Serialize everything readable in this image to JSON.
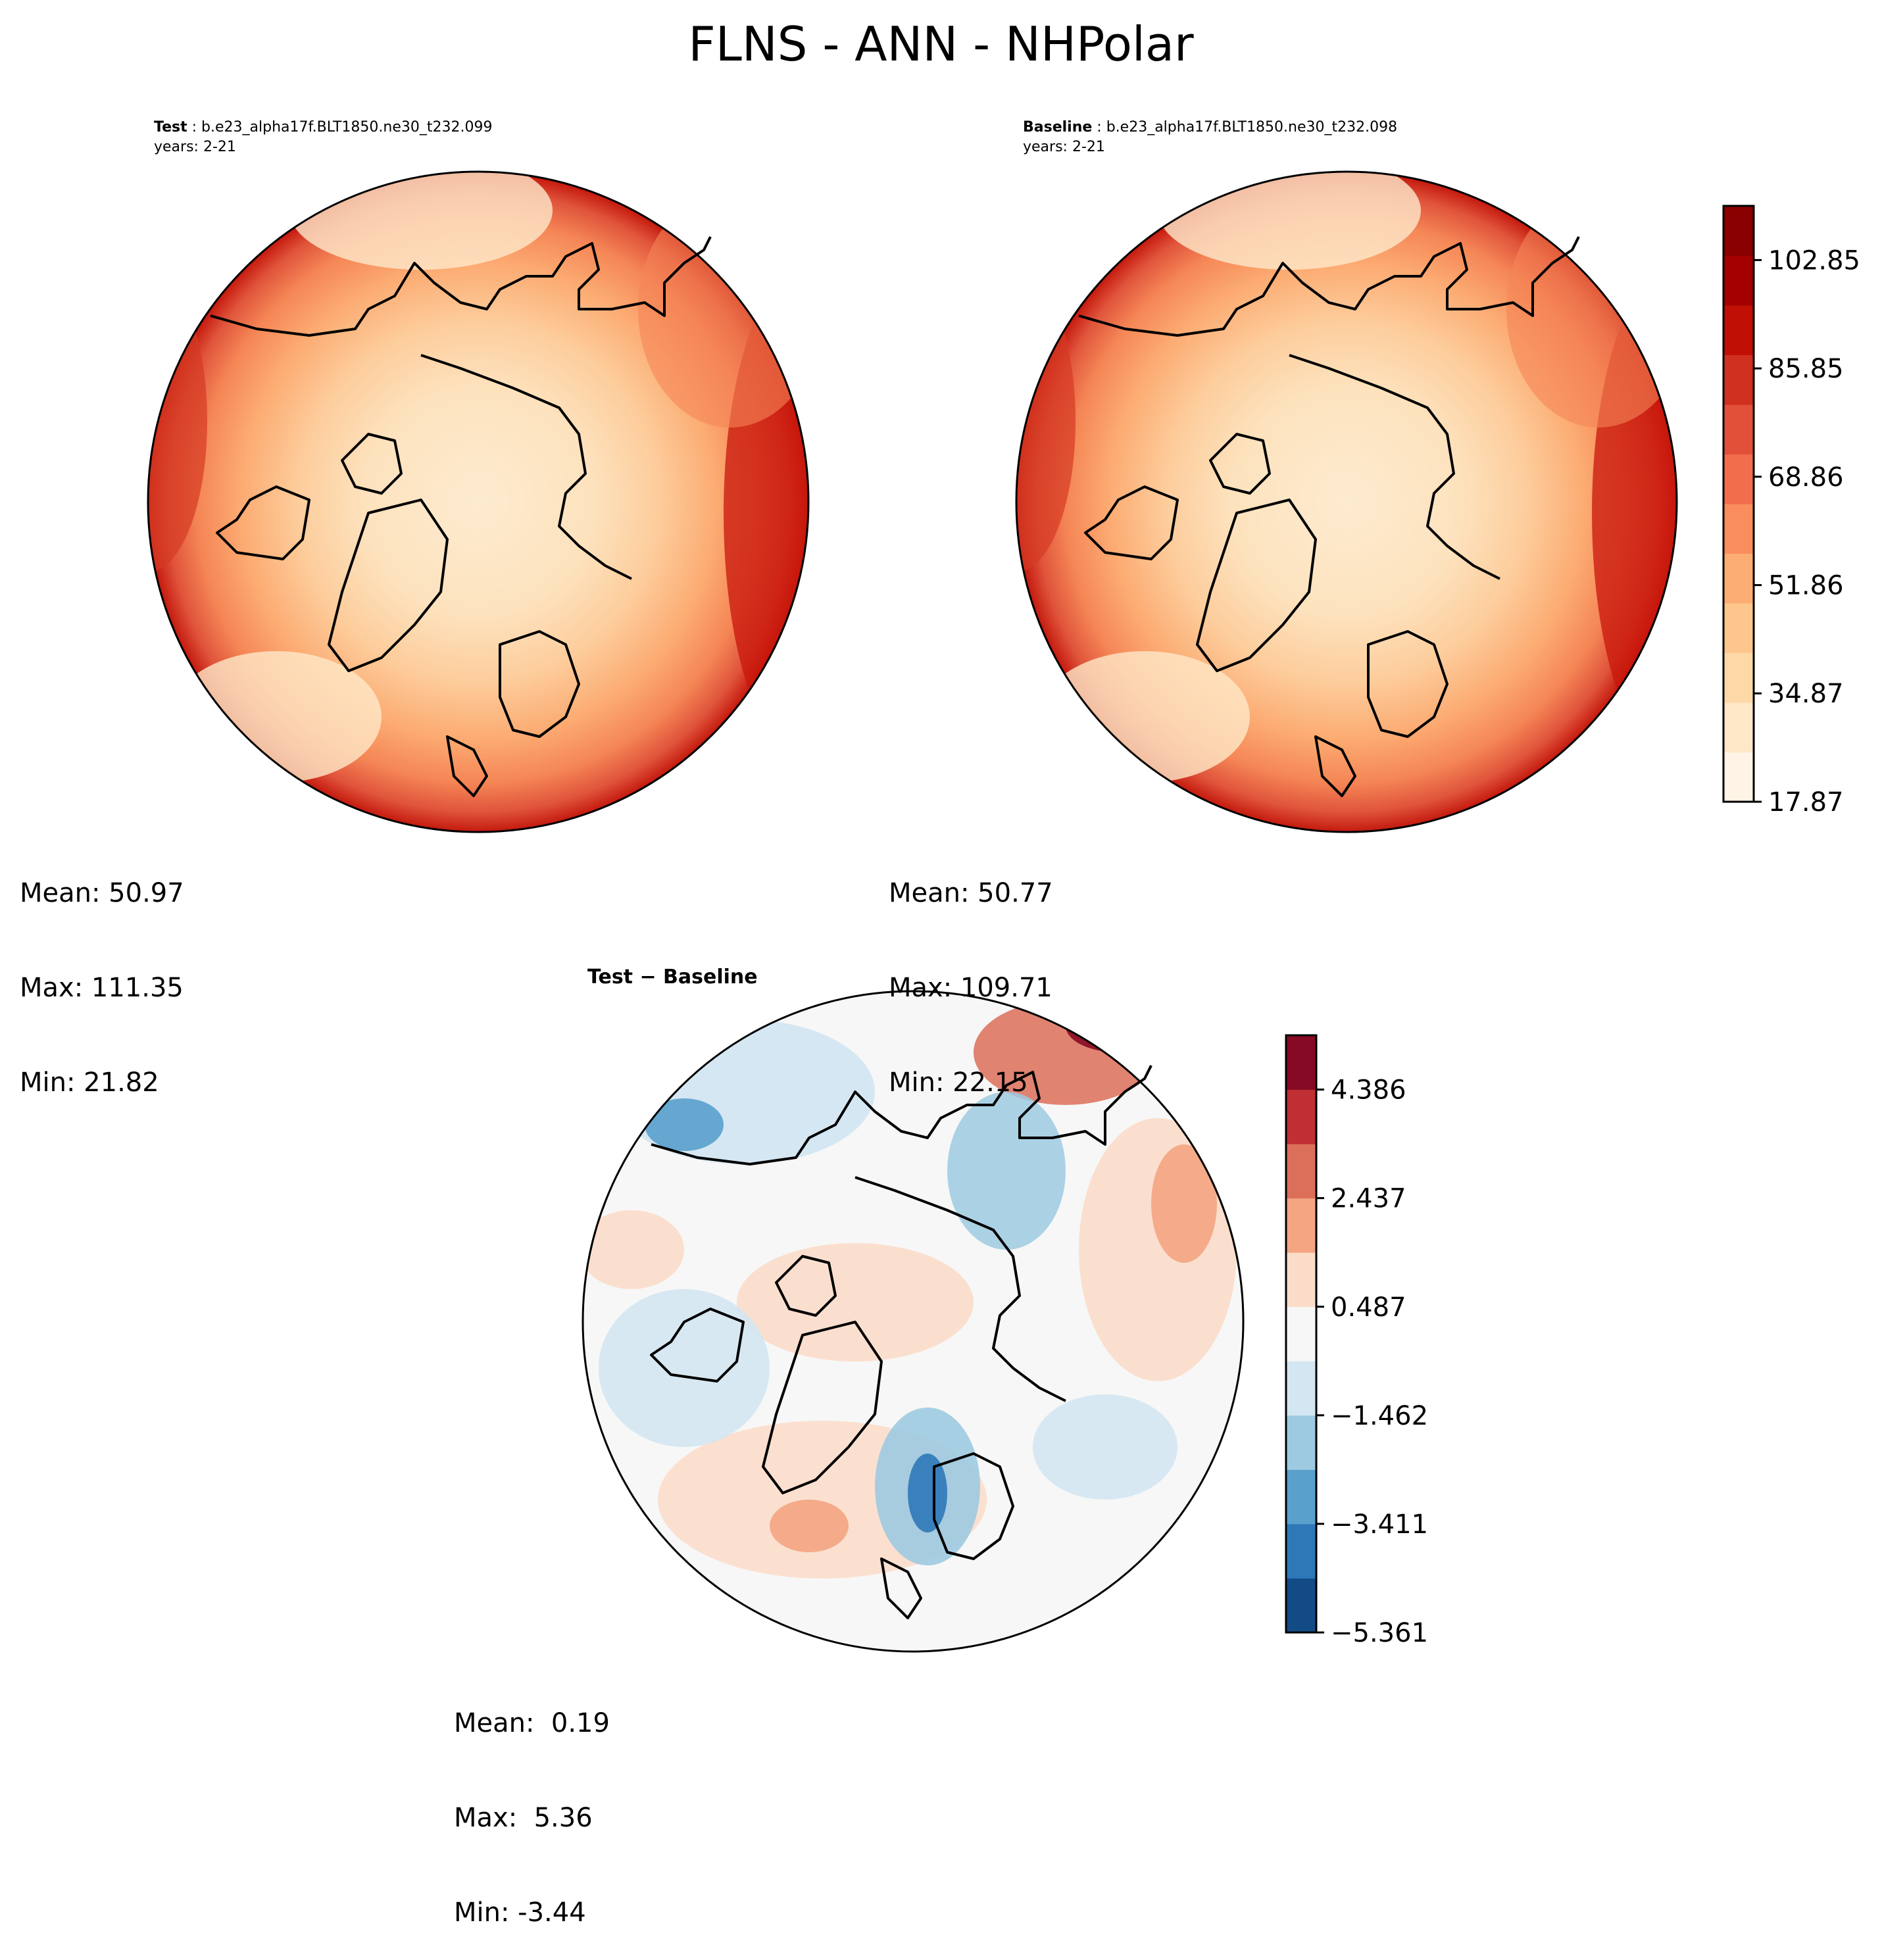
{
  "figure": {
    "title": "FLNS - ANN - NHPolar"
  },
  "panels": [
    {
      "id": "test",
      "label": "Test",
      "case": "b.e23_alpha17f.BLT1850.ne30_t232.099",
      "years": "years: 2-21",
      "stats": {
        "mean": "Mean: 50.97",
        "max": "Max: 111.35",
        "min": "Min: 21.82"
      }
    },
    {
      "id": "baseline",
      "label": "Baseline",
      "case": "b.e23_alpha17f.BLT1850.ne30_t232.098",
      "years": "years: 2-21",
      "stats": {
        "mean": "Mean: 50.77",
        "max": "Max: 109.71",
        "min": "Min: 22.15"
      }
    },
    {
      "id": "diff",
      "label": "Test − Baseline",
      "stats": {
        "mean": "Mean:  0.19",
        "max": "Max:  5.36",
        "min": "Min: -3.44"
      }
    }
  ],
  "chart_data": [
    {
      "type": "heatmap",
      "projection": "north-polar-stereographic",
      "name": "Test",
      "variable": "FLNS",
      "season": "ANN",
      "region": "NHPolar",
      "mean": 50.97,
      "max": 111.35,
      "min": 21.82,
      "colormap": "OrRd"
    },
    {
      "type": "heatmap",
      "projection": "north-polar-stereographic",
      "name": "Baseline",
      "variable": "FLNS",
      "season": "ANN",
      "region": "NHPolar",
      "mean": 50.77,
      "max": 109.71,
      "min": 22.15,
      "colormap": "OrRd"
    },
    {
      "type": "heatmap",
      "projection": "north-polar-stereographic",
      "name": "Test − Baseline",
      "mean": 0.19,
      "max": 5.36,
      "min": -3.44,
      "colormap": "RdBu_r"
    }
  ],
  "colorbars": {
    "main": {
      "min": 17.87,
      "max": 111.35,
      "tick_labels": [
        "17.87",
        "34.87",
        "51.86",
        "68.86",
        "85.85",
        "102.85"
      ],
      "tick_values": [
        17.87,
        34.87,
        51.86,
        68.86,
        85.85,
        102.85
      ],
      "colors": [
        "#fff4e6",
        "#fee8c8",
        "#fdd9a8",
        "#fdc68d",
        "#fcad73",
        "#f98e5c",
        "#f26d4b",
        "#e2503a",
        "#d0301f",
        "#c00f05",
        "#a40000",
        "#8a0000"
      ]
    },
    "diff": {
      "min": -5.361,
      "max": 5.361,
      "tick_labels": [
        "−5.361",
        "−3.411",
        "−1.462",
        "0.487",
        "2.437",
        "4.386"
      ],
      "tick_values": [
        -5.361,
        -3.411,
        -1.462,
        0.487,
        2.437,
        4.386
      ],
      "colors": [
        "#134b87",
        "#2f78b8",
        "#5aa0cd",
        "#9dcae1",
        "#d3e6f1",
        "#f7f7f7",
        "#fbdcc9",
        "#f4a582",
        "#dc6f59",
        "#bf2f34",
        "#870a24"
      ]
    }
  },
  "palette": {
    "land_outline": "#000000",
    "ocean_low": "#fee8c8",
    "polar_low": "#fdebd0"
  }
}
